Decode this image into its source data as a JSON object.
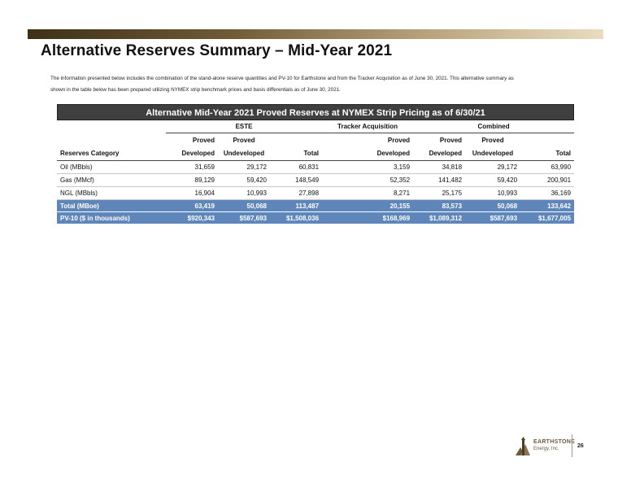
{
  "page": {
    "title": "Alternative Reserves Summary – Mid-Year 2021",
    "intro_line1": "The information presented below includes the combination of the stand-alone reserve quantities and PV-10 for Earthstone and from the Tracker Acquisition as of June 30, 2021.  This alternative summary as",
    "intro_line2": "shown in the table below has been prepared utilizing NYMEX strip benchmark prices and basis differentials as of June 30, 2021."
  },
  "table": {
    "header": "Alternative Mid-Year 2021 Proved Reserves at NYMEX Strip Pricing as of 6/30/21",
    "groups": {
      "este": "ESTE",
      "tracker": "Tracker Acquisition",
      "combined": "Combined"
    },
    "sub1": {
      "c1": "Proved",
      "c2": "Proved",
      "c4": "Proved",
      "c5": "Proved",
      "c6": "Proved"
    },
    "sub2": {
      "label": "Reserves Category",
      "c1": "Developed",
      "c2": "Undeveloped",
      "c3": "Total",
      "c4": "Developed",
      "c5": "Developed",
      "c6": "Undeveloped",
      "c7": "Total"
    },
    "rows": [
      {
        "label": "Oil (MBbls)",
        "values": [
          "31,659",
          "29,172",
          "60,831",
          "3,159",
          "34,818",
          "29,172",
          "63,990"
        ]
      },
      {
        "label": "Gas (MMcf)",
        "values": [
          "89,129",
          "59,420",
          "148,549",
          "52,352",
          "141,482",
          "59,420",
          "200,901"
        ]
      },
      {
        "label": "NGL (MBbls)",
        "values": [
          "16,904",
          "10,993",
          "27,898",
          "8,271",
          "25,175",
          "10,993",
          "36,169"
        ]
      }
    ],
    "highlight_rows": [
      {
        "label": "Total (MBoe)",
        "values": [
          "63,419",
          "50,068",
          "113,487",
          "20,155",
          "83,573",
          "50,068",
          "133,642"
        ]
      },
      {
        "label": "PV-10 ($ in thousands)",
        "values": [
          "$920,343",
          "$587,693",
          "$1,508,036",
          "$168,969",
          "$1,089,312",
          "$587,693",
          "$1,677,005"
        ]
      }
    ]
  },
  "footer": {
    "logo_name": "EARTHSTONE",
    "logo_sub": "Energy, Inc.",
    "page_number": "26"
  },
  "colors": {
    "header_bg": "#3f3f3f",
    "highlight_bg": "#5f86ba",
    "brand_bronze": "#6b5a3a"
  }
}
